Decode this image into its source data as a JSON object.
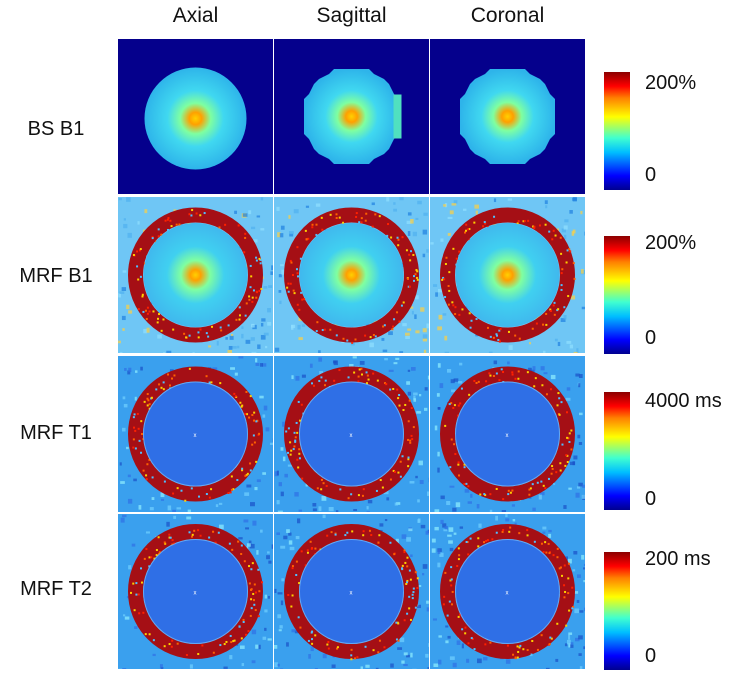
{
  "columns": [
    "Axial",
    "Sagittal",
    "Coronal"
  ],
  "rows": [
    {
      "label": "BS B1",
      "map": "bs",
      "cb_max": "200%",
      "cb_min": "0"
    },
    {
      "label": "MRF B1",
      "map": "b1",
      "cb_max": "200%",
      "cb_min": "0"
    },
    {
      "label": "MRF T1",
      "map": "t1",
      "cb_max": "4000 ms",
      "cb_min": "0"
    },
    {
      "label": "MRF T2",
      "map": "t2",
      "cb_max": "200 ms",
      "cb_min": "0"
    }
  ],
  "colormap": "jet",
  "colors": {
    "background_dark": "#05008c",
    "noise_light": "#6fc6f5",
    "phantom_blue": "#2f6fe6",
    "ring_red": "#a50f15",
    "center_yellow": "#ffd000"
  }
}
